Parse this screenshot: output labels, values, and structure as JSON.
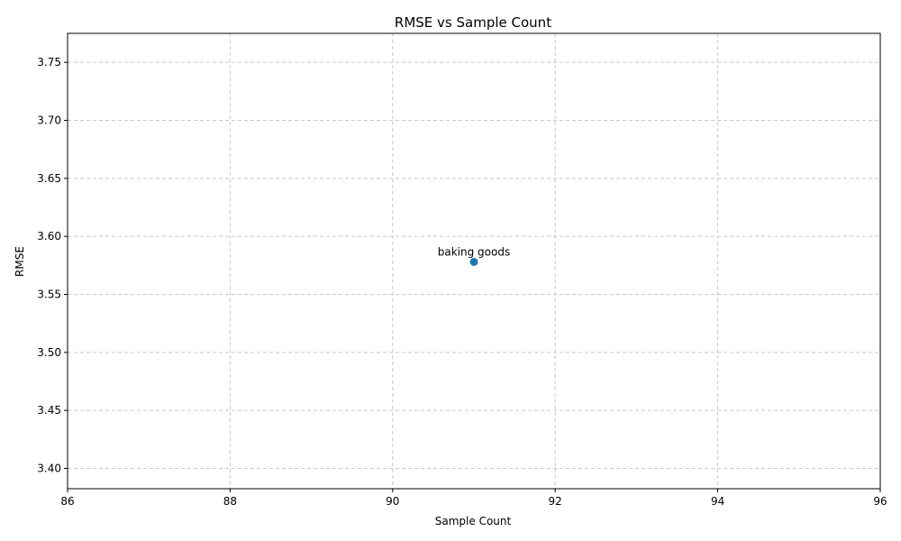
{
  "chart_data": {
    "type": "scatter",
    "title": "RMSE vs Sample Count",
    "xlabel": "Sample Count",
    "ylabel": "RMSE",
    "xlim": [
      86,
      96
    ],
    "ylim": [
      3.3825,
      3.775
    ],
    "xticks": [
      86,
      88,
      90,
      92,
      94,
      96
    ],
    "xtick_labels": [
      "86",
      "88",
      "90",
      "92",
      "94",
      "96"
    ],
    "yticks": [
      3.4,
      3.45,
      3.5,
      3.55,
      3.6,
      3.65,
      3.7,
      3.75
    ],
    "ytick_labels": [
      "3.40",
      "3.45",
      "3.50",
      "3.55",
      "3.60",
      "3.65",
      "3.70",
      "3.75"
    ],
    "grid": true,
    "points": [
      {
        "x": 91,
        "y": 3.578,
        "label": "baking goods"
      }
    ],
    "colors": {
      "point": "#1f77b4",
      "grid": "#c8c8c8",
      "axis": "#000000"
    }
  }
}
